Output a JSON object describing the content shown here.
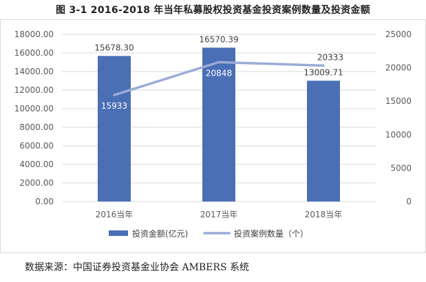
{
  "title": "图 3-1 2016-2018 年当年私募股权投资基金投资案例数量及投资金额",
  "source": "数据来源：中国证券投资基金业协会 AMBERS 系统",
  "chart_data": {
    "type": "bar",
    "categories": [
      "2016当年",
      "2017当年",
      "2018当年"
    ],
    "series": [
      {
        "name": "投资金额(亿元)",
        "type": "bar",
        "axis": "left",
        "color": "#4a6fb5",
        "values": [
          15678.3,
          16570.39,
          13009.71
        ],
        "labels": [
          "15678.30",
          "16570.39",
          "13009.71"
        ]
      },
      {
        "name": "投资案例数量（个）",
        "type": "line",
        "axis": "right",
        "color": "#9aabd8",
        "values": [
          15933,
          20848,
          20333
        ],
        "labels": [
          "15933",
          "20848",
          "20333"
        ]
      }
    ],
    "y_left": {
      "ylim": [
        0,
        18000
      ],
      "ticks": [
        0,
        2000,
        4000,
        6000,
        8000,
        10000,
        12000,
        14000,
        16000,
        18000
      ],
      "tick_labels": [
        "0.00",
        "2000.00",
        "4000.00",
        "6000.00",
        "8000.00",
        "10000.00",
        "12000.00",
        "14000.00",
        "16000.00",
        "18000.00"
      ]
    },
    "y_right": {
      "ylim": [
        0,
        25000
      ],
      "ticks": [
        0,
        5000,
        10000,
        15000,
        20000,
        25000
      ],
      "tick_labels": [
        "0",
        "5000",
        "10000",
        "15000",
        "20000",
        "25000"
      ]
    },
    "grid": true,
    "legend": "bottom"
  }
}
